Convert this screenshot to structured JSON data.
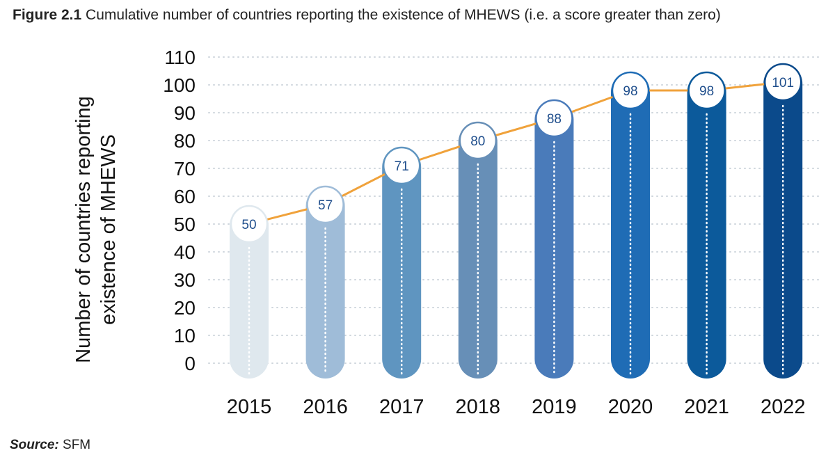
{
  "figure": {
    "label": "Figure 2.1",
    "caption": "Cumulative number of countries reporting the existence of MHEWS (i.e. a score greater than zero)"
  },
  "source": {
    "label": "Source:",
    "text": "SFM"
  },
  "colors": {
    "line": "#F0A23B",
    "grid": "#cfd6dd",
    "label_text": "#1f4e8c",
    "bars": [
      "#dfe8ee",
      "#9fbcd8",
      "#5f95c0",
      "#678fb7",
      "#4a7bba",
      "#1f6cb5",
      "#0c5a9b",
      "#0b4a8b"
    ]
  },
  "chart_data": {
    "type": "bar",
    "categories": [
      "2015",
      "2016",
      "2017",
      "2018",
      "2019",
      "2020",
      "2021",
      "2022"
    ],
    "values": [
      50,
      57,
      71,
      80,
      88,
      98,
      98,
      101
    ],
    "data_labels": [
      "50",
      "57",
      "71",
      "80",
      "88",
      "98",
      "98",
      "101"
    ],
    "overlay": "line",
    "title": "",
    "xlabel": "",
    "ylabel": "Number of countries reporting existence of MHEWS",
    "ylim": [
      0,
      110
    ],
    "yticks": [
      "0",
      "10",
      "20",
      "30",
      "40",
      "50",
      "60",
      "70",
      "80",
      "90",
      "100",
      "110"
    ],
    "grid": true,
    "legend": "none"
  }
}
